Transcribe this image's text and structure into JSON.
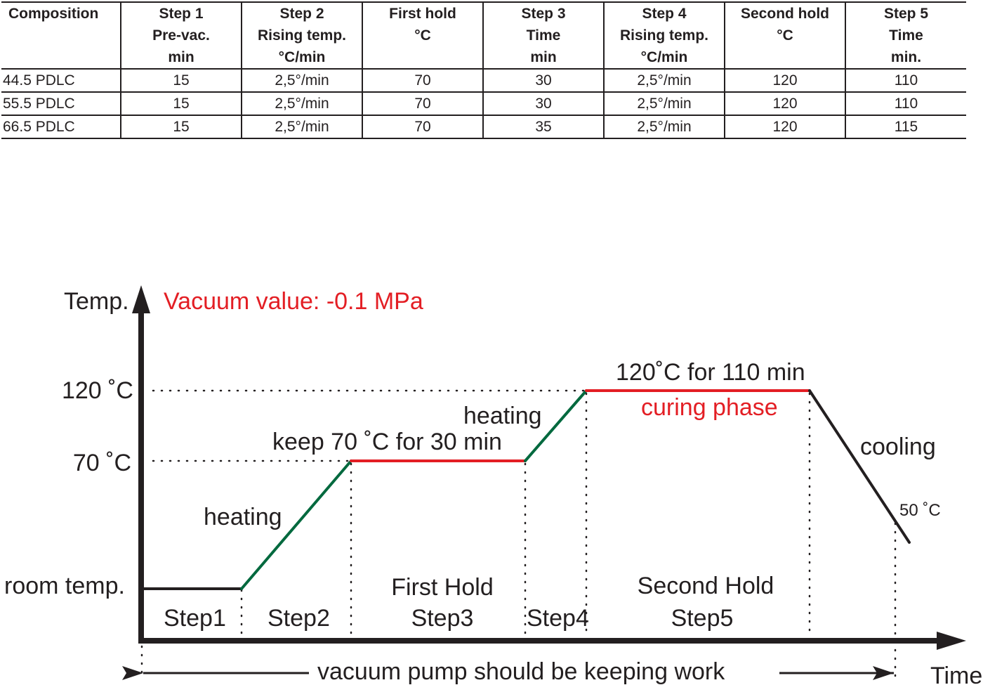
{
  "table": {
    "header_rows": [
      [
        "Composition",
        "Step 1",
        "Step 2",
        "First hold",
        "Step 3",
        "Step 4",
        "Second hold",
        "Step 5"
      ],
      [
        "",
        "Pre-vac.",
        "Rising temp.",
        "°C",
        "Time",
        "Rising temp.",
        "°C",
        "Time"
      ],
      [
        "",
        "min",
        "°C/min",
        "",
        "min",
        "°C/min",
        "",
        "min."
      ]
    ],
    "rows": [
      [
        "44.5 PDLC",
        "15",
        "2,5°/min",
        "70",
        "30",
        "2,5°/min",
        "120",
        "110"
      ],
      [
        "55.5 PDLC",
        "15",
        "2,5°/min",
        "70",
        "30",
        "2,5°/min",
        "120",
        "110"
      ],
      [
        "66.5 PDLC",
        "15",
        "2,5°/min",
        "70",
        "35",
        "2,5°/min",
        "120",
        "115"
      ]
    ]
  },
  "diagram": {
    "y_axis_label": "Temp.",
    "x_axis_label": "Time",
    "vacuum_note": "Vacuum value: -0.1 MPa",
    "y_levels": [
      "120 ˚C",
      "70 ˚C",
      "room temp."
    ],
    "segment_labels": {
      "heating_1": "heating",
      "first_hold": "keep 70 ˚C for 30 min",
      "heating_2": "heating",
      "second_hold": "120˚C for 110 min",
      "curing": "curing phase",
      "cooling": "cooling",
      "end_temp": "50 ˚C"
    },
    "steps": {
      "step1": "Step1",
      "step2": "Step2",
      "first_hold_title": "First Hold",
      "step3": "Step3",
      "step4": "Step4",
      "second_hold_title": "Second Hold",
      "step5": "Step5"
    },
    "vacuum_pump_note": "vacuum pump should be keeping work",
    "colors": {
      "ink": "#231f20",
      "heating": "#00693e",
      "hold": "#e31e24",
      "note": "#e31e24"
    }
  }
}
